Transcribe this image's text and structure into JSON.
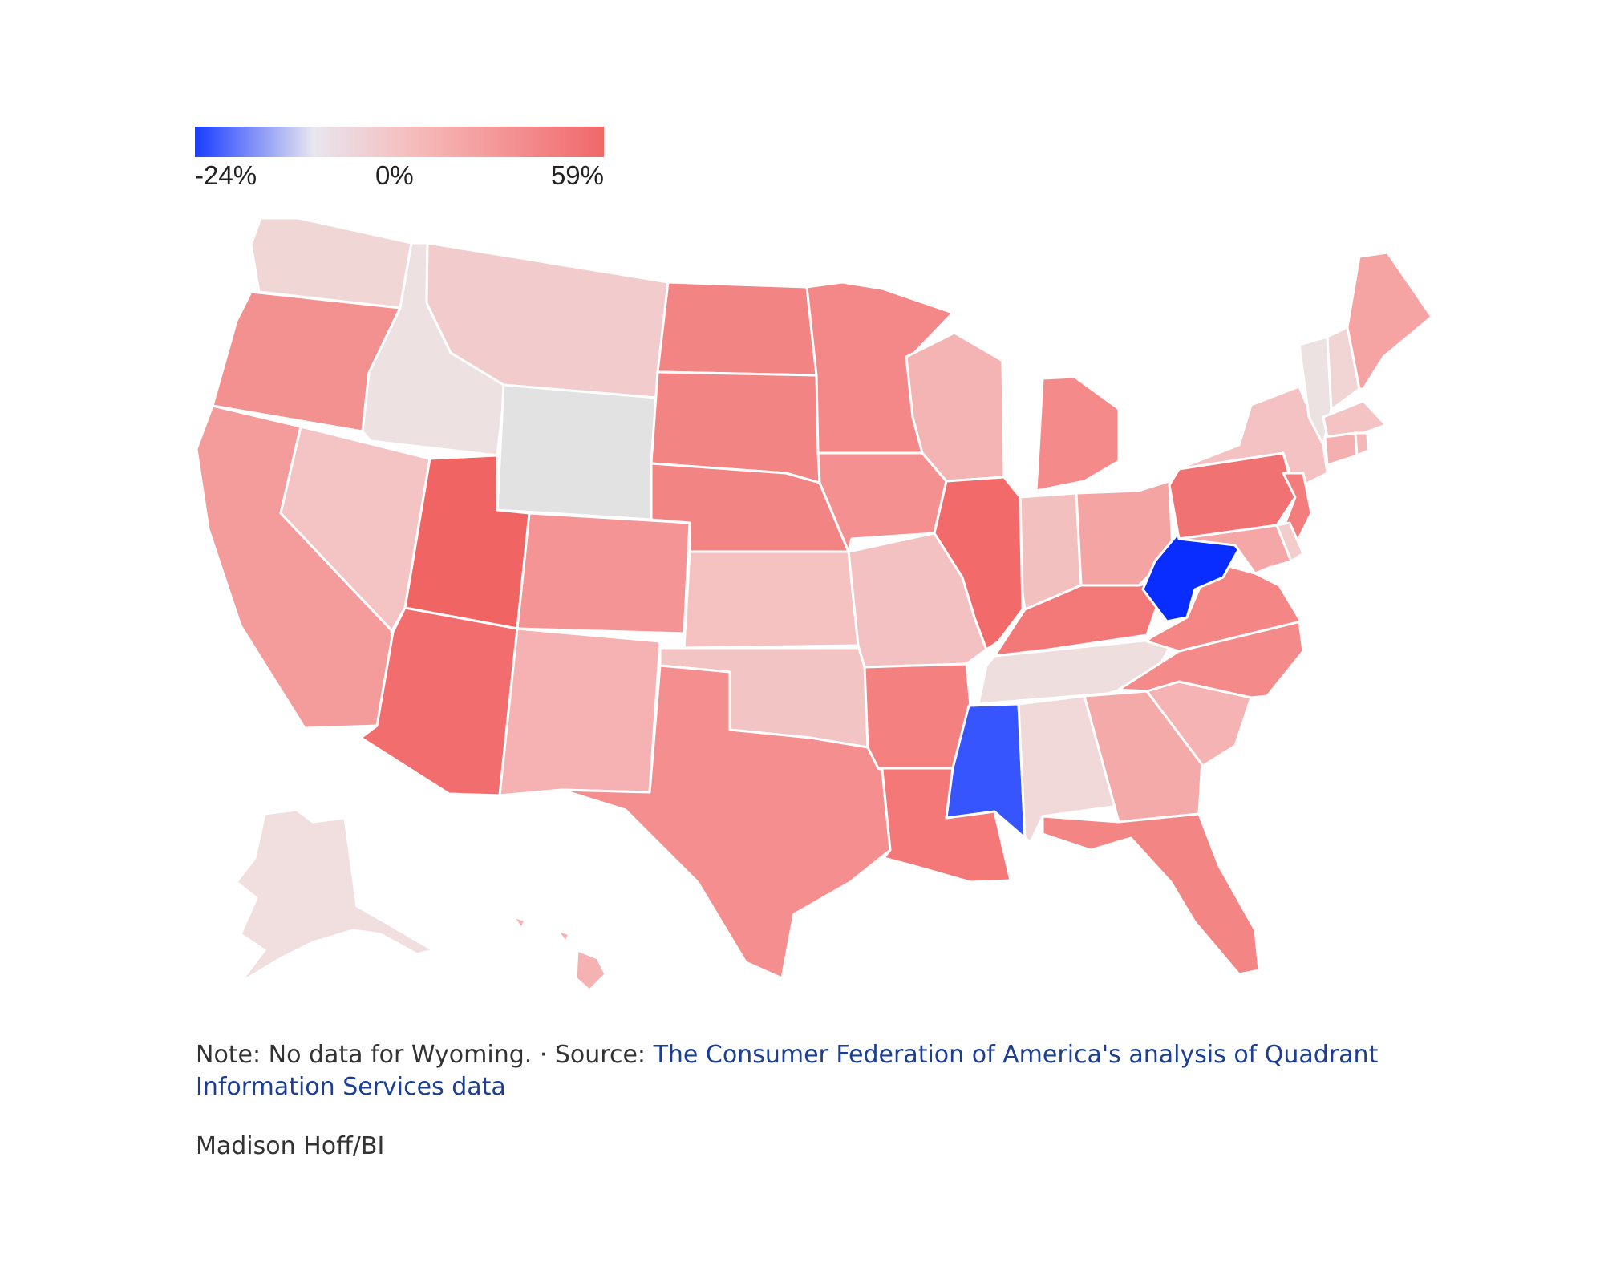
{
  "legend": {
    "min_label": "-24%",
    "mid_label": "0%",
    "max_label": "59%",
    "min_value": -24,
    "mid_value": 0,
    "max_value": 59,
    "color_low": "#1a3cff",
    "color_mid": "#e8e6ee",
    "color_high": "#f0686a"
  },
  "map": {
    "no_data_color": "#e2e2e2",
    "states": [
      {
        "id": "WA",
        "fill": "#f1d6d6"
      },
      {
        "id": "OR",
        "fill": "#f39090"
      },
      {
        "id": "CA",
        "fill": "#f49b9b"
      },
      {
        "id": "ID",
        "fill": "#ede1e1"
      },
      {
        "id": "NV",
        "fill": "#f4c3c3"
      },
      {
        "id": "MT",
        "fill": "#f2cccc"
      },
      {
        "id": "WY",
        "fill": "#e2e2e2"
      },
      {
        "id": "UT",
        "fill": "#f16464"
      },
      {
        "id": "AZ",
        "fill": "#f26d6d"
      },
      {
        "id": "CO",
        "fill": "#f59494"
      },
      {
        "id": "NM",
        "fill": "#f6b2b2"
      },
      {
        "id": "ND",
        "fill": "#f38484"
      },
      {
        "id": "SD",
        "fill": "#f38484"
      },
      {
        "id": "NE",
        "fill": "#f38484"
      },
      {
        "id": "KS",
        "fill": "#f5c1c1"
      },
      {
        "id": "OK",
        "fill": "#f3c4c4"
      },
      {
        "id": "TX",
        "fill": "#f58e8e"
      },
      {
        "id": "MN",
        "fill": "#f48888"
      },
      {
        "id": "IA",
        "fill": "#f59090"
      },
      {
        "id": "MO",
        "fill": "#f3c1c1"
      },
      {
        "id": "AR",
        "fill": "#f48080"
      },
      {
        "id": "LA",
        "fill": "#f47878"
      },
      {
        "id": "WI",
        "fill": "#f4b4b4"
      },
      {
        "id": "IL",
        "fill": "#f26a6a"
      },
      {
        "id": "MS",
        "fill": "#3655ff"
      },
      {
        "id": "MI",
        "fill": "#f48a8a"
      },
      {
        "id": "IN",
        "fill": "#f3c0c0"
      },
      {
        "id": "OH",
        "fill": "#f5a4a4"
      },
      {
        "id": "KY",
        "fill": "#f37878"
      },
      {
        "id": "TN",
        "fill": "#eedede"
      },
      {
        "id": "AL",
        "fill": "#f1d9d9"
      },
      {
        "id": "GA",
        "fill": "#f5aaaa"
      },
      {
        "id": "FL",
        "fill": "#f48585"
      },
      {
        "id": "SC",
        "fill": "#f5b3b3"
      },
      {
        "id": "NC",
        "fill": "#f58a8a"
      },
      {
        "id": "VA",
        "fill": "#f48686"
      },
      {
        "id": "WV",
        "fill": "#0a2dff"
      },
      {
        "id": "PA",
        "fill": "#f17272"
      },
      {
        "id": "NY",
        "fill": "#f4c2c2"
      },
      {
        "id": "NJ",
        "fill": "#f37c7c"
      },
      {
        "id": "MD",
        "fill": "#f5a6a6"
      },
      {
        "id": "DE",
        "fill": "#f3cccc"
      },
      {
        "id": "VT",
        "fill": "#ece2e2"
      },
      {
        "id": "NH",
        "fill": "#f1d4d4"
      },
      {
        "id": "ME",
        "fill": "#f5a3a3"
      },
      {
        "id": "MA",
        "fill": "#f4c4c4"
      },
      {
        "id": "CT",
        "fill": "#f4b0b0"
      },
      {
        "id": "RI",
        "fill": "#f4b8b8"
      },
      {
        "id": "AK",
        "fill": "#f1dede"
      },
      {
        "id": "HI",
        "fill": "#f5b2b2"
      }
    ]
  },
  "footer": {
    "note": "Note: No data for Wyoming. · Source: ",
    "source_link": "The Consumer Federation of America's analysis of Quadrant Information Services data",
    "credit": "Madison Hoff/BI"
  }
}
